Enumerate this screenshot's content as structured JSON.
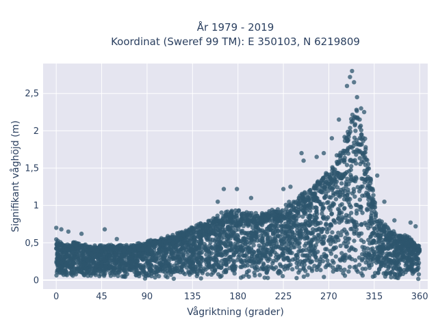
{
  "chart_data": {
    "type": "scatter",
    "title_line1": "År 1979 - 2019",
    "title_line2": "Koordinat (Sweref 99 TM): E 350103, N 6219809",
    "xlabel": "Vågriktning (grader)",
    "ylabel": "Signifikant våghöjd (m)",
    "xlim": [
      -13,
      368
    ],
    "ylim": [
      -0.12,
      2.9
    ],
    "xticks": [
      0,
      45,
      90,
      135,
      180,
      225,
      270,
      315,
      360
    ],
    "xtick_labels": [
      "0",
      "45",
      "90",
      "135",
      "180",
      "225",
      "270",
      "315",
      "360"
    ],
    "yticks": [
      0,
      0.5,
      1,
      1.5,
      2,
      2.5
    ],
    "ytick_labels": [
      "0",
      "0,5",
      "1",
      "1,5",
      "2",
      "2,5"
    ],
    "grid": true,
    "marker_color": "#2e566e",
    "plot_background": "#e5e5f0",
    "envelope": {
      "x": [
        0,
        10,
        20,
        30,
        45,
        60,
        75,
        90,
        105,
        120,
        135,
        150,
        160,
        170,
        180,
        195,
        210,
        225,
        240,
        255,
        265,
        275,
        285,
        292,
        297,
        300,
        305,
        310,
        315,
        320,
        330,
        340,
        350,
        360
      ],
      "y_max": [
        0.55,
        0.45,
        0.5,
        0.45,
        0.45,
        0.45,
        0.45,
        0.5,
        0.55,
        0.6,
        0.7,
        0.75,
        0.85,
        0.9,
        0.9,
        0.85,
        0.9,
        0.95,
        1.1,
        1.2,
        1.4,
        1.55,
        1.8,
        2.1,
        2.3,
        2.2,
        1.9,
        1.5,
        1.05,
        0.8,
        0.65,
        0.6,
        0.55,
        0.45
      ]
    },
    "outliers": [
      {
        "x": 0,
        "y": 0.7
      },
      {
        "x": 5,
        "y": 0.68
      },
      {
        "x": 12,
        "y": 0.65
      },
      {
        "x": 25,
        "y": 0.62
      },
      {
        "x": 48,
        "y": 0.68
      },
      {
        "x": 60,
        "y": 0.55
      },
      {
        "x": 160,
        "y": 1.05
      },
      {
        "x": 166,
        "y": 1.22
      },
      {
        "x": 179,
        "y": 1.22
      },
      {
        "x": 193,
        "y": 1.1
      },
      {
        "x": 225,
        "y": 1.22
      },
      {
        "x": 232,
        "y": 1.25
      },
      {
        "x": 245,
        "y": 1.6
      },
      {
        "x": 243,
        "y": 1.7
      },
      {
        "x": 258,
        "y": 1.65
      },
      {
        "x": 265,
        "y": 1.7
      },
      {
        "x": 273,
        "y": 1.9
      },
      {
        "x": 280,
        "y": 2.15
      },
      {
        "x": 288,
        "y": 2.6
      },
      {
        "x": 291,
        "y": 2.72
      },
      {
        "x": 293,
        "y": 2.8
      },
      {
        "x": 295,
        "y": 2.65
      },
      {
        "x": 298,
        "y": 2.45
      },
      {
        "x": 302,
        "y": 2.3
      },
      {
        "x": 305,
        "y": 2.25
      },
      {
        "x": 318,
        "y": 1.4
      },
      {
        "x": 325,
        "y": 1.05
      },
      {
        "x": 335,
        "y": 0.8
      },
      {
        "x": 351,
        "y": 0.77
      },
      {
        "x": 356,
        "y": 0.72
      }
    ]
  }
}
